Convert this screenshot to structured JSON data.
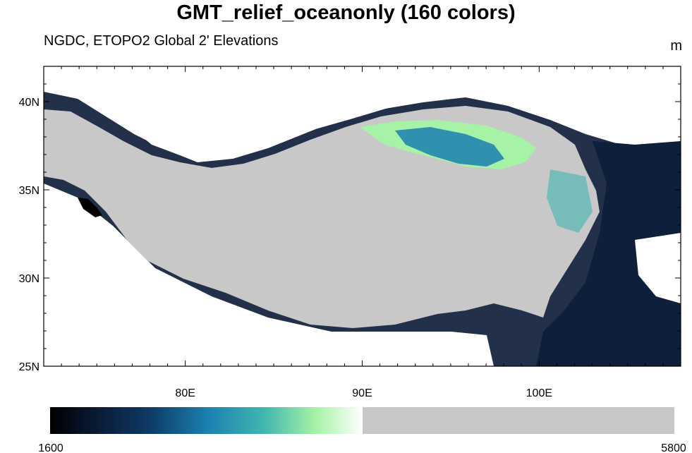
{
  "title": "GMT_relief_oceanonly (160 colors)",
  "subtitle": "NGDC, ETOPO2 Global 2' Elevations",
  "units": "m",
  "colors": {
    "land_high": "#c8c8c8",
    "ramp": [
      "#000000",
      "#0a1a35",
      "#0d3b66",
      "#1a7fb0",
      "#3fb5b0",
      "#a6f2a6",
      "#ffffff"
    ],
    "frame": "#000000"
  },
  "chart_data": {
    "type": "heatmap",
    "projection": "cylindrical-equidistant",
    "lon_range": [
      72,
      108
    ],
    "lat_range": [
      25,
      42
    ],
    "lat_ticks": [
      {
        "value": 25,
        "label": "25N"
      },
      {
        "value": 30,
        "label": "30N"
      },
      {
        "value": 35,
        "label": "35N"
      },
      {
        "value": 40,
        "label": "40N"
      }
    ],
    "lon_ticks": [
      {
        "value": 80,
        "label": "80E"
      },
      {
        "value": 90,
        "label": "90E"
      },
      {
        "value": 100,
        "label": "100E"
      }
    ],
    "colorbar": {
      "min": 1600,
      "max": 5800,
      "min_label": "1600",
      "max_label": "5800",
      "gray_from_fraction": 0.5
    }
  }
}
